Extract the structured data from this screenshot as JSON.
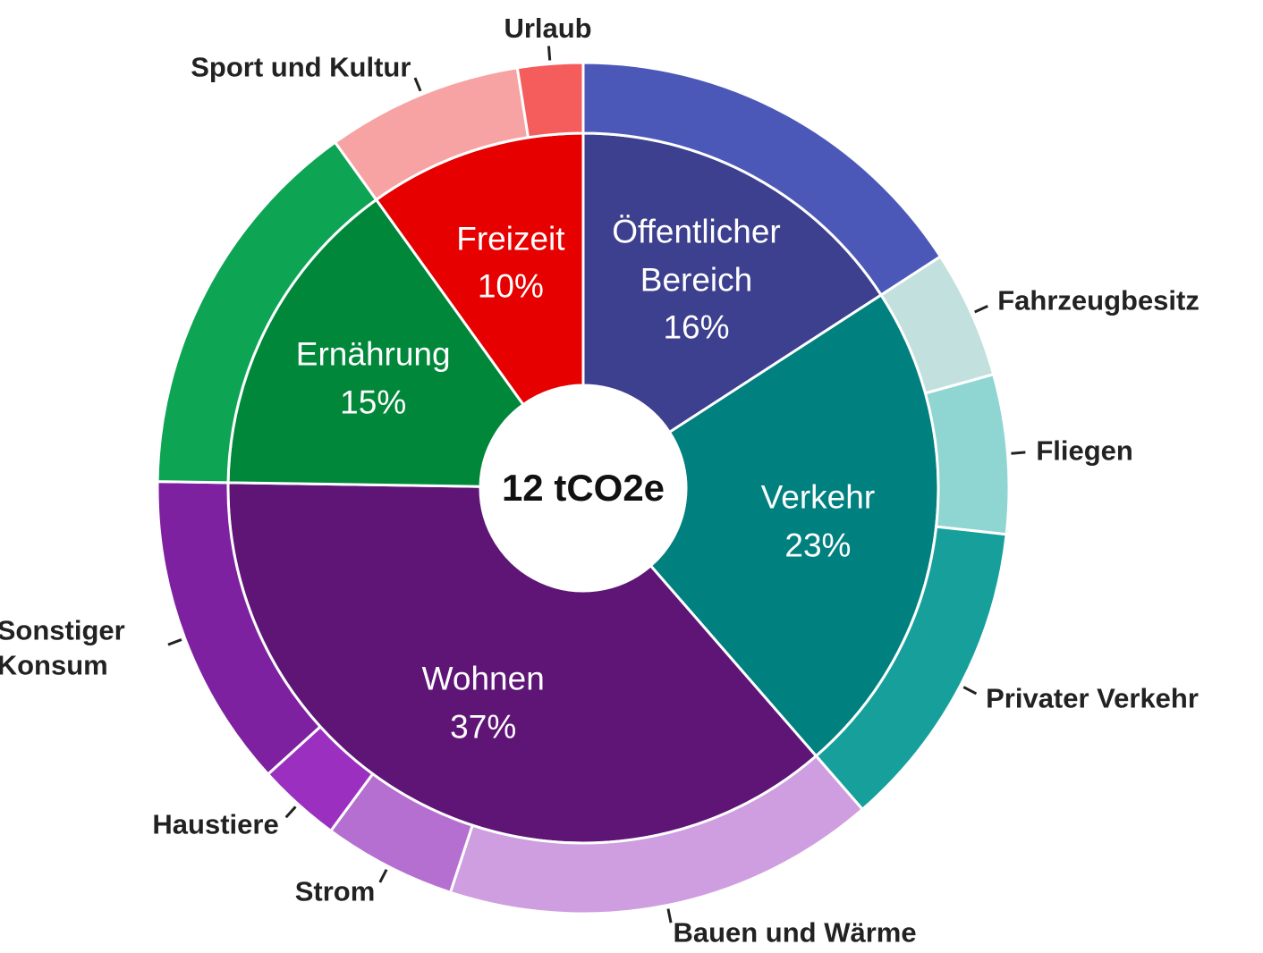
{
  "chart_data": {
    "type": "sunburst",
    "center_label": "12 tCO2e",
    "segments": [
      {
        "name": "Öffentlicher Bereich",
        "value": 16,
        "value_label": "16%",
        "color": "#3d3f8f",
        "children": [
          {
            "name": null,
            "value": 16,
            "color": "#4b58b8"
          }
        ]
      },
      {
        "name": "Verkehr",
        "value": 23,
        "value_label": "23%",
        "color": "#00807f",
        "children": [
          {
            "name": "Fahrzeugbesitz",
            "value": 4.9,
            "color": "#c2e0dd"
          },
          {
            "name": "Fliegen",
            "value": 6.1,
            "color": "#8fd5d2"
          },
          {
            "name": "Privater Verkehr",
            "value": 12,
            "color": "#17a09b"
          }
        ]
      },
      {
        "name": "Wohnen",
        "value": 37,
        "value_label": "37%",
        "color": "#5e1575",
        "children": [
          {
            "name": "Bauen und Wärme",
            "value": 16.6,
            "color": "#cf9ee0"
          },
          {
            "name": "Strom",
            "value": 5.1,
            "color": "#b56fd0"
          },
          {
            "name": "Haustiere",
            "value": 3.2,
            "color": "#9b30c0"
          },
          {
            "name": "Sonstiger Konsum",
            "value": 12.1,
            "color": "#7e21a0"
          }
        ]
      },
      {
        "name": "Ernährung",
        "value": 15,
        "value_label": "15%",
        "color": "#00873a",
        "children": [
          {
            "name": null,
            "value": 15,
            "color": "#0da454"
          }
        ]
      },
      {
        "name": "Freizeit",
        "value": 10,
        "value_label": "10%",
        "color": "#e60000",
        "children": [
          {
            "name": "Sport und Kultur",
            "value": 7.5,
            "color": "#f7a3a4"
          },
          {
            "name": "Urlaub",
            "value": 2.5,
            "color": "#f55d5d"
          }
        ]
      }
    ]
  }
}
